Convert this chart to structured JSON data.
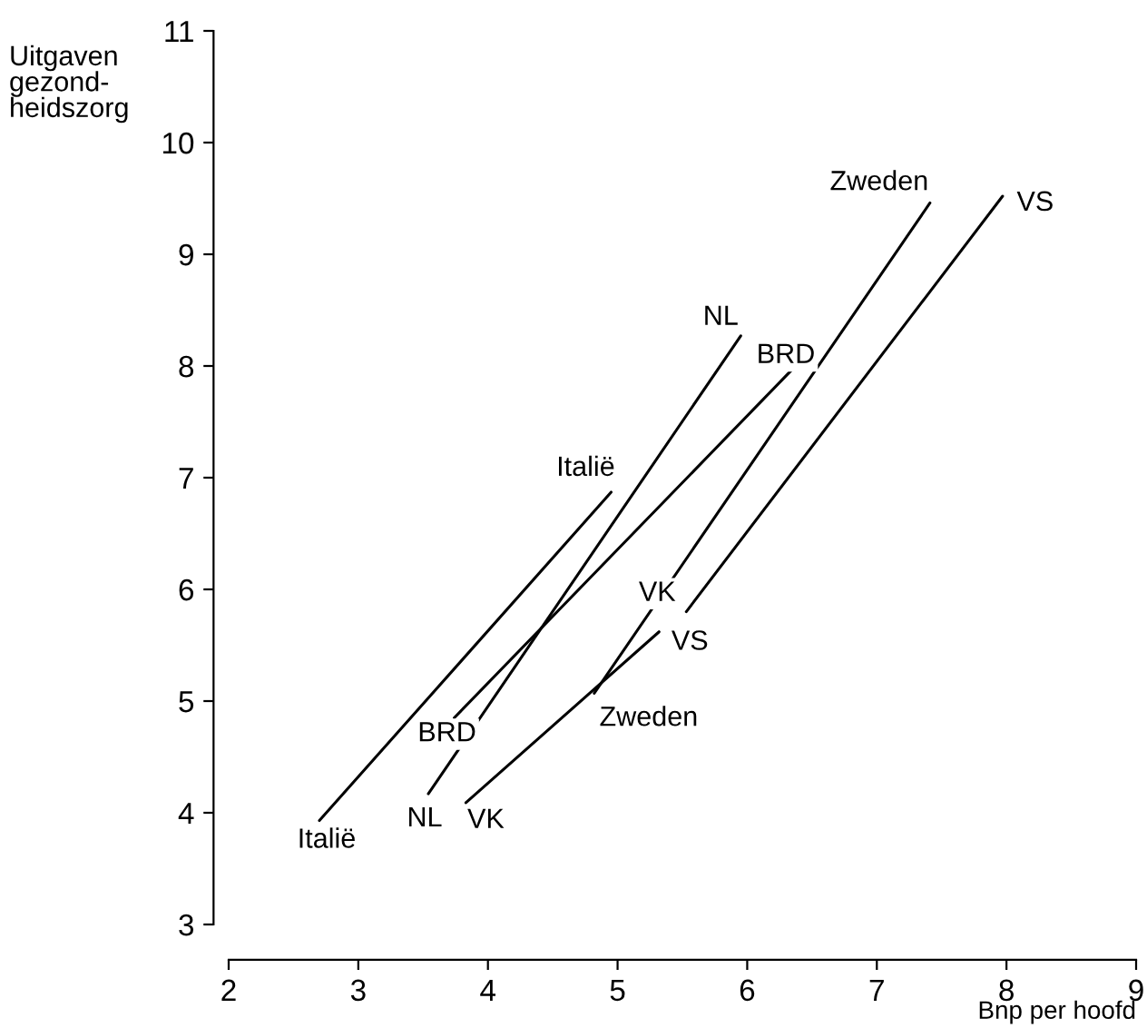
{
  "chart_data": {
    "type": "line",
    "xlabel": "Bnp per hoofd",
    "ylabel": "Uitgaven\ngezond-\nheidszorg",
    "xlim": [
      2,
      9
    ],
    "ylim": [
      3,
      11
    ],
    "xticks": [
      2,
      3,
      4,
      5,
      6,
      7,
      8,
      9
    ],
    "yticks": [
      3,
      4,
      5,
      6,
      7,
      8,
      9,
      10,
      11
    ],
    "grid": false,
    "legend": false,
    "marker": "none",
    "line_style": "solid",
    "series": [
      {
        "name": "Italië",
        "color": "#000000",
        "x": [
          2.7,
          4.95
        ],
        "values": [
          3.93,
          6.87
        ]
      },
      {
        "name": "NL",
        "color": "#000000",
        "x": [
          3.54,
          5.95
        ],
        "values": [
          4.17,
          8.27
        ]
      },
      {
        "name": "BRD",
        "color": "#000000",
        "x": [
          3.74,
          6.34
        ],
        "values": [
          4.85,
          7.96
        ]
      },
      {
        "name": "VK",
        "color": "#000000",
        "x": [
          3.83,
          5.32
        ],
        "values": [
          4.09,
          5.62
        ]
      },
      {
        "name": "Zweden",
        "color": "#000000",
        "x": [
          4.82,
          7.41
        ],
        "values": [
          5.07,
          9.46
        ]
      },
      {
        "name": "VS",
        "color": "#000000",
        "x": [
          5.53,
          7.97
        ],
        "values": [
          5.8,
          9.52
        ]
      }
    ]
  }
}
